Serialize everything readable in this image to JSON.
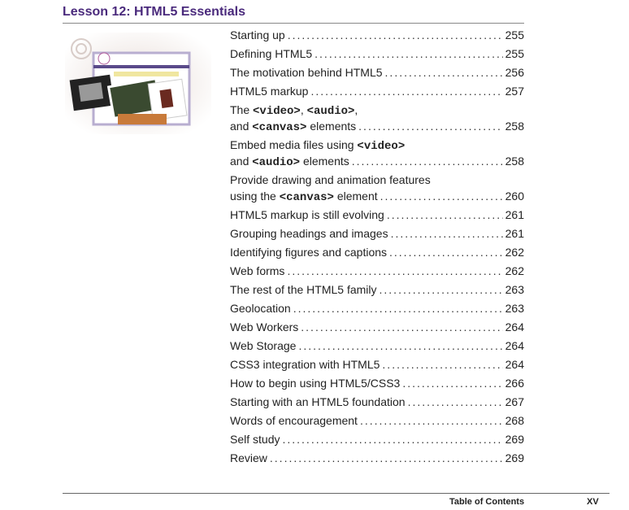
{
  "header": {
    "title": "Lesson 12: HTML5 Essentials"
  },
  "colors": {
    "title": "#4a2a7c"
  },
  "toc": [
    {
      "lines": [
        [
          {
            "t": "Starting up"
          }
        ]
      ],
      "page": "255"
    },
    {
      "lines": [
        [
          {
            "t": "Defining HTML5"
          }
        ]
      ],
      "page": "255"
    },
    {
      "lines": [
        [
          {
            "t": "The motivation behind HTML5"
          }
        ]
      ],
      "page": "256"
    },
    {
      "lines": [
        [
          {
            "t": "HTML5 markup"
          }
        ]
      ],
      "page": "257"
    },
    {
      "lines": [
        [
          {
            "t": "The "
          },
          {
            "t": "<video>",
            "code": true
          },
          {
            "t": ", "
          },
          {
            "t": "<audio>",
            "code": true
          },
          {
            "t": ","
          }
        ],
        [
          {
            "t": "and "
          },
          {
            "t": "<canvas>",
            "code": true
          },
          {
            "t": " elements"
          }
        ]
      ],
      "page": "258"
    },
    {
      "lines": [
        [
          {
            "t": "Embed media files using "
          },
          {
            "t": "<video>",
            "code": true
          }
        ],
        [
          {
            "t": "and "
          },
          {
            "t": "<audio>",
            "code": true
          },
          {
            "t": " elements"
          }
        ]
      ],
      "page": "258"
    },
    {
      "lines": [
        [
          {
            "t": "Provide drawing and animation features"
          }
        ],
        [
          {
            "t": "using the "
          },
          {
            "t": "<canvas>",
            "code": true
          },
          {
            "t": " element"
          }
        ]
      ],
      "page": "260"
    },
    {
      "lines": [
        [
          {
            "t": "HTML5 markup is still evolving"
          }
        ]
      ],
      "page": "261"
    },
    {
      "lines": [
        [
          {
            "t": "Grouping headings and images"
          }
        ]
      ],
      "page": "261"
    },
    {
      "lines": [
        [
          {
            "t": "Identifying figures and captions"
          }
        ]
      ],
      "page": "262"
    },
    {
      "lines": [
        [
          {
            "t": "Web forms"
          }
        ]
      ],
      "page": "262"
    },
    {
      "lines": [
        [
          {
            "t": "The rest of the HTML5 family"
          }
        ]
      ],
      "page": "263"
    },
    {
      "lines": [
        [
          {
            "t": "Geolocation"
          }
        ]
      ],
      "page": "263"
    },
    {
      "lines": [
        [
          {
            "t": "Web Workers"
          }
        ]
      ],
      "page": "264"
    },
    {
      "lines": [
        [
          {
            "t": "Web Storage"
          }
        ]
      ],
      "page": "264"
    },
    {
      "lines": [
        [
          {
            "t": "CSS3 integration with HTML5"
          }
        ]
      ],
      "page": "264"
    },
    {
      "lines": [
        [
          {
            "t": "How to begin using HTML5/CSS3"
          }
        ]
      ],
      "page": "266"
    },
    {
      "lines": [
        [
          {
            "t": "Starting with an HTML5 foundation"
          }
        ]
      ],
      "page": "267"
    },
    {
      "lines": [
        [
          {
            "t": "Words of encouragement"
          }
        ]
      ],
      "page": "268"
    },
    {
      "lines": [
        [
          {
            "t": "Self study"
          }
        ]
      ],
      "page": "269"
    },
    {
      "lines": [
        [
          {
            "t": "Review"
          }
        ]
      ],
      "page": "269"
    }
  ],
  "footer": {
    "label": "Table of Contents",
    "page": "XV"
  }
}
